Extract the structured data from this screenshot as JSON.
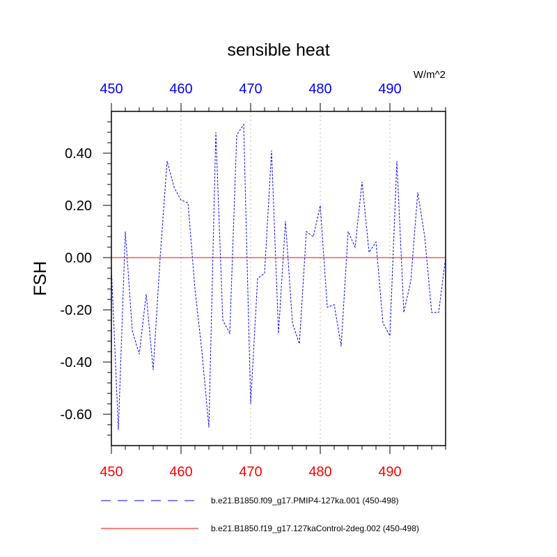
{
  "chart_data": {
    "type": "line",
    "title": "sensible heat",
    "ylabel": "FSH",
    "units": "W/m^2",
    "xlim": [
      450,
      498
    ],
    "ylim": [
      -0.72,
      0.56
    ],
    "x_ticks": [
      450,
      460,
      470,
      480,
      490
    ],
    "x_tick_labels": [
      "450",
      "460",
      "470",
      "480",
      "490"
    ],
    "y_ticks": [
      0.4,
      0.2,
      0.0,
      -0.2,
      -0.4,
      -0.6
    ],
    "y_tick_labels": [
      "0.40",
      "0.20",
      "0.00",
      "-0.20",
      "-0.40",
      "-0.60"
    ],
    "top_axis_color": "#0000ff",
    "bottom_axis_color": "#ff0000",
    "grid_color": "#bbbbbb",
    "series": [
      {
        "name": "b.e21.B1850.f09_g17.PMIP4-127ka.001 (450-498)",
        "color": "#0000ff",
        "dash": true,
        "x": [
          450,
          451,
          452,
          453,
          454,
          455,
          456,
          457,
          458,
          459,
          460,
          461,
          462,
          463,
          464,
          465,
          466,
          467,
          468,
          469,
          470,
          471,
          472,
          473,
          474,
          475,
          476,
          477,
          478,
          479,
          480,
          481,
          482,
          483,
          484,
          485,
          486,
          487,
          488,
          489,
          490,
          491,
          492,
          493,
          494,
          495,
          496,
          497,
          498
        ],
        "values": [
          -0.04,
          -0.66,
          0.1,
          -0.28,
          -0.37,
          -0.14,
          -0.43,
          0.0,
          0.37,
          0.27,
          0.22,
          0.21,
          -0.12,
          -0.36,
          -0.65,
          0.48,
          -0.24,
          -0.29,
          0.47,
          0.51,
          -0.56,
          -0.08,
          -0.06,
          0.41,
          -0.29,
          0.14,
          -0.25,
          -0.33,
          0.1,
          0.08,
          0.2,
          -0.19,
          -0.18,
          -0.34,
          0.1,
          0.04,
          0.29,
          0.02,
          0.06,
          -0.25,
          -0.3,
          0.37,
          -0.21,
          -0.09,
          0.25,
          0.08,
          -0.21,
          -0.21,
          0.0
        ]
      },
      {
        "name": "b.e21.B1850.f19_g17.127kaControl-2deg.002 (450-498)",
        "color": "#ff0000",
        "dash": false,
        "x": [
          450,
          498
        ],
        "values": [
          0.0,
          0.0
        ]
      }
    ]
  }
}
